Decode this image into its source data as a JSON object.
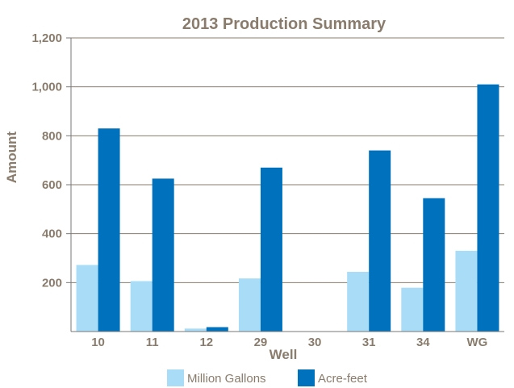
{
  "chart_data": {
    "type": "bar",
    "title": "2013 Production Summary",
    "xlabel": "Well",
    "ylabel": "Amount",
    "categories": [
      "10",
      "11",
      "12",
      "29",
      "30",
      "31",
      "34",
      "WG"
    ],
    "series": [
      {
        "name": "Million Gallons",
        "color": "#a8dcf7",
        "values": [
          272,
          206,
          12,
          217,
          0,
          244,
          179,
          330
        ]
      },
      {
        "name": "Acre-feet",
        "color": "#0071bc",
        "values": [
          830,
          625,
          18,
          670,
          0,
          740,
          545,
          1010
        ]
      }
    ],
    "ylim": [
      0,
      1200
    ],
    "yticks": [
      200,
      400,
      600,
      800,
      1000,
      1200
    ],
    "ytick_labels": [
      "200",
      "400",
      "600",
      "800",
      "1,000",
      "1,200"
    ],
    "grid": true,
    "legend_position": "bottom"
  }
}
